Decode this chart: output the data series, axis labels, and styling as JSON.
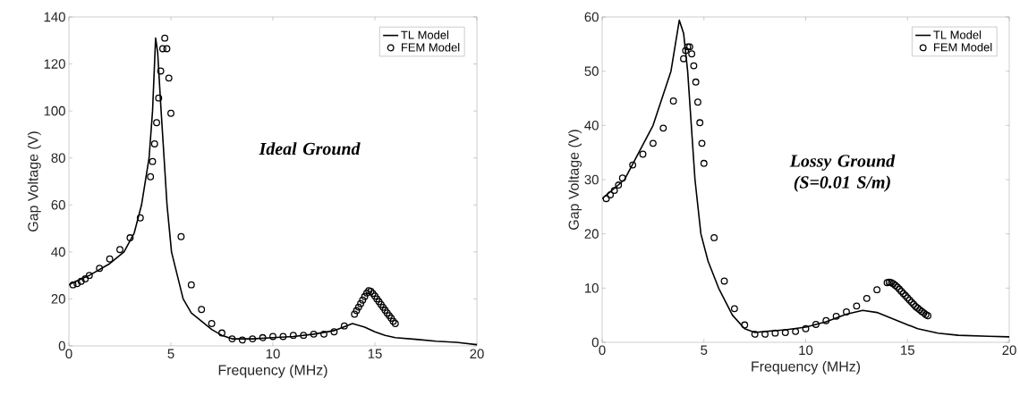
{
  "chart_data": [
    {
      "type": "line",
      "xlabel": "Frequency (MHz)",
      "ylabel": "Gap Voltage (V)",
      "annotations": [
        "Ideal Ground"
      ],
      "xlim": [
        0,
        20
      ],
      "ylim": [
        0,
        140
      ],
      "xticks": [
        0,
        5,
        10,
        15,
        20
      ],
      "yticks": [
        0,
        20,
        40,
        60,
        80,
        100,
        120,
        140
      ],
      "legend": "top right",
      "series": [
        {
          "name": "TL Model",
          "type": "line",
          "color": "#000000",
          "marker": "none",
          "line_style": "solid",
          "x": [
            0,
            1,
            2,
            2.7,
            3.2,
            3.56,
            3.93,
            4.1,
            4.25,
            4.35,
            4.52,
            4.81,
            5.03,
            5.6,
            6,
            6.57,
            7,
            7.5,
            8,
            9,
            10,
            11,
            12,
            13,
            13.6,
            13.9,
            14.5,
            15,
            15.5,
            16,
            17,
            18,
            19,
            20
          ],
          "values": [
            26,
            30,
            35,
            40,
            48,
            60,
            80,
            100,
            131,
            125,
            100,
            60,
            40,
            20,
            14,
            10,
            7,
            4.5,
            3,
            3,
            3.5,
            4,
            5,
            6.5,
            8.5,
            9.5,
            8,
            6,
            4.5,
            3.5,
            2.8,
            2,
            1.5,
            0.5
          ]
        },
        {
          "name": "FEM Model",
          "type": "scatter",
          "color": "#000000",
          "marker": "circle",
          "x": [
            0.2,
            0.4,
            0.6,
            0.8,
            1.0,
            1.5,
            2,
            2.5,
            3,
            3.5,
            4.0,
            4.1,
            4.2,
            4.3,
            4.4,
            4.5,
            4.6,
            4.7,
            4.8,
            4.9,
            5.0,
            5.5,
            6,
            6.5,
            7,
            7.5,
            8,
            8.5,
            9,
            9.5,
            10,
            10.5,
            11,
            11.5,
            12,
            12.5,
            13,
            13.5,
            14.0,
            14.1,
            14.2,
            14.3,
            14.4,
            14.5,
            14.6,
            14.7,
            14.8,
            14.9,
            15.0,
            15.1,
            15.2,
            15.3,
            15.4,
            15.5,
            15.6,
            15.7,
            15.8,
            15.9,
            16.0
          ],
          "values": [
            26,
            26.5,
            27.5,
            28.5,
            30,
            33,
            37,
            41,
            46,
            54.5,
            72,
            78.5,
            86,
            95,
            105.5,
            117,
            126.5,
            131,
            126.5,
            114,
            99,
            46.5,
            26,
            15.5,
            9.5,
            5.5,
            3,
            2.5,
            3,
            3.5,
            4,
            4,
            4.5,
            4.5,
            5,
            5,
            6,
            8.5,
            13.5,
            15,
            16.5,
            18,
            19.5,
            21,
            22.5,
            23.5,
            23.2,
            22.3,
            21.2,
            20,
            18.8,
            17.6,
            16.4,
            15.2,
            14,
            12.9,
            11.8,
            10.5,
            9.5
          ]
        }
      ]
    },
    {
      "type": "line",
      "xlabel": "Frequency (MHz)",
      "ylabel": "Gap Voltage (V)",
      "annotations": [
        "Lossy Ground (S=0.01 S/m)"
      ],
      "xlim": [
        0,
        20
      ],
      "ylim": [
        0,
        60
      ],
      "xticks": [
        0,
        5,
        10,
        15,
        20
      ],
      "yticks": [
        0,
        10,
        20,
        30,
        40,
        50,
        60
      ],
      "legend": "top right",
      "series": [
        {
          "name": "TL Model",
          "type": "line",
          "color": "#000000",
          "marker": "none",
          "line_style": "solid",
          "x": [
            0,
            1.1,
            2.5,
            3.38,
            3.79,
            4.0,
            4.2,
            4.56,
            4.85,
            5.2,
            5.72,
            6.4,
            7,
            7.5,
            8,
            9,
            10,
            11,
            12,
            12.8,
            13.5,
            14.5,
            15.5,
            16.5,
            17.5,
            19,
            20
          ],
          "values": [
            26.5,
            30,
            40,
            50,
            59.4,
            57,
            50,
            30,
            20,
            15,
            10,
            5,
            2.5,
            1.8,
            2,
            2.3,
            2.8,
            3.8,
            5.2,
            5.9,
            5.5,
            4,
            2.5,
            1.7,
            1.3,
            1.1,
            1.0
          ]
        },
        {
          "name": "FEM Model",
          "type": "scatter",
          "color": "#000000",
          "marker": "circle",
          "x": [
            0.2,
            0.4,
            0.6,
            0.8,
            1.0,
            1.5,
            2,
            2.5,
            3,
            3.5,
            4.0,
            4.1,
            4.2,
            4.3,
            4.4,
            4.5,
            4.6,
            4.7,
            4.8,
            4.9,
            5.0,
            5.5,
            6,
            6.5,
            7,
            7.5,
            8,
            8.5,
            9,
            9.5,
            10,
            10.5,
            11,
            11.5,
            12,
            12.5,
            13,
            13.5,
            14.0,
            14.1,
            14.2,
            14.3,
            14.4,
            14.5,
            14.6,
            14.7,
            14.8,
            14.9,
            15.0,
            15.1,
            15.2,
            15.3,
            15.4,
            15.5,
            15.6,
            15.7,
            15.8,
            15.9,
            16.0
          ],
          "values": [
            26.5,
            27.2,
            28,
            29,
            30.3,
            32.7,
            34.7,
            36.7,
            39.5,
            44.5,
            52.3,
            53.8,
            54.5,
            54.5,
            53.2,
            51,
            48,
            44.3,
            40.5,
            36.7,
            33,
            19.3,
            11.3,
            6.2,
            3.2,
            1.5,
            1.5,
            1.7,
            1.8,
            2,
            2.5,
            3.3,
            4,
            4.8,
            5.6,
            6.7,
            8.1,
            9.7,
            11,
            11.1,
            11,
            10.8,
            10.5,
            10.2,
            9.8,
            9.4,
            9,
            8.6,
            8.2,
            7.8,
            7.4,
            7,
            6.6,
            6.3,
            6,
            5.7,
            5.4,
            5.1,
            4.9
          ]
        }
      ]
    }
  ]
}
